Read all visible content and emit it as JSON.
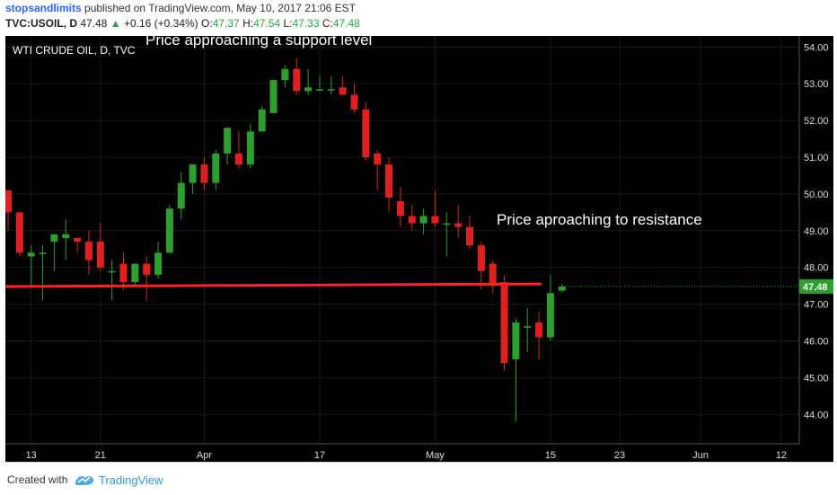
{
  "header": {
    "author": "stopsandlimits",
    "published_text": "published on TradingView.com, May 10, 2017 21:06 EST",
    "symbol": "TVC:USOIL, D",
    "last": "47.48",
    "change_arrow": "▲",
    "change": "+0.16 (+0.34%)",
    "o_label": "O:",
    "o_val": "47.37",
    "h_label": "H:",
    "h_val": "47.54",
    "l_label": "L:",
    "l_val": "47.33",
    "c_label": "C:",
    "c_val": "47.48"
  },
  "footer": {
    "created_with": "Created with",
    "brand": "TradingView"
  },
  "chart_data": {
    "type": "candlestick",
    "title": "WTI CRUDE OIL, D, TVC",
    "annotations": [
      "Price approaching a support level",
      "Price aproaching to resistance"
    ],
    "y_ticks": [
      44,
      45,
      46,
      47,
      48,
      49,
      50,
      51,
      52,
      53,
      54
    ],
    "y_tick_labels": [
      "44.00",
      "45.00",
      "46.00",
      "47.00",
      "48.00",
      "49.00",
      "50.00",
      "51.00",
      "52.00",
      "53.00",
      "54.00"
    ],
    "ylim": [
      43.2,
      54.3
    ],
    "x_ticks": [
      {
        "label": "13",
        "index": 2
      },
      {
        "label": "21",
        "index": 8
      },
      {
        "label": "Apr",
        "index": 17
      },
      {
        "label": "17",
        "index": 27
      },
      {
        "label": "May",
        "index": 37
      },
      {
        "label": "15",
        "index": 47
      },
      {
        "label": "23",
        "index": 53
      },
      {
        "label": "Jun",
        "index": 60
      },
      {
        "label": "12",
        "index": 67
      }
    ],
    "last_price": 47.48,
    "last_price_label": "47.48",
    "horizontal_line": {
      "value": 47.53,
      "color": "#ff2222"
    },
    "colors": {
      "up": "#2ca02c",
      "down": "#e02020",
      "background": "#000000",
      "grid": "#1a1a1a"
    },
    "candles": [
      {
        "o": 50.1,
        "h": 50.1,
        "l": 49.0,
        "c": 49.5
      },
      {
        "o": 49.5,
        "h": 49.5,
        "l": 48.3,
        "c": 48.4
      },
      {
        "o": 48.3,
        "h": 48.6,
        "l": 47.5,
        "c": 48.4
      },
      {
        "o": 48.4,
        "h": 48.6,
        "l": 47.1,
        "c": 48.4
      },
      {
        "o": 48.7,
        "h": 48.9,
        "l": 47.9,
        "c": 48.9
      },
      {
        "o": 48.8,
        "h": 49.3,
        "l": 48.2,
        "c": 48.9
      },
      {
        "o": 48.8,
        "h": 48.8,
        "l": 48.4,
        "c": 48.7
      },
      {
        "o": 48.7,
        "h": 49.0,
        "l": 47.8,
        "c": 48.2
      },
      {
        "o": 48.7,
        "h": 49.2,
        "l": 47.9,
        "c": 48.0
      },
      {
        "o": 47.9,
        "h": 48.2,
        "l": 47.1,
        "c": 47.9
      },
      {
        "o": 48.1,
        "h": 48.4,
        "l": 47.4,
        "c": 47.6
      },
      {
        "o": 47.6,
        "h": 48.1,
        "l": 47.5,
        "c": 48.1
      },
      {
        "o": 48.1,
        "h": 48.3,
        "l": 47.1,
        "c": 47.8
      },
      {
        "o": 47.8,
        "h": 48.7,
        "l": 47.7,
        "c": 48.4
      },
      {
        "o": 48.4,
        "h": 49.7,
        "l": 48.4,
        "c": 49.6
      },
      {
        "o": 49.6,
        "h": 50.6,
        "l": 49.3,
        "c": 50.3
      },
      {
        "o": 50.3,
        "h": 50.8,
        "l": 50.0,
        "c": 50.8
      },
      {
        "o": 50.8,
        "h": 51.0,
        "l": 50.1,
        "c": 50.3
      },
      {
        "o": 50.3,
        "h": 51.2,
        "l": 50.1,
        "c": 51.1
      },
      {
        "o": 51.1,
        "h": 51.8,
        "l": 50.8,
        "c": 51.8
      },
      {
        "o": 51.1,
        "h": 51.7,
        "l": 50.7,
        "c": 50.8
      },
      {
        "o": 50.8,
        "h": 51.9,
        "l": 50.7,
        "c": 51.7
      },
      {
        "o": 51.7,
        "h": 52.4,
        "l": 51.7,
        "c": 52.3
      },
      {
        "o": 52.2,
        "h": 53.1,
        "l": 52.2,
        "c": 53.1
      },
      {
        "o": 53.1,
        "h": 53.5,
        "l": 52.9,
        "c": 53.4
      },
      {
        "o": 53.4,
        "h": 53.7,
        "l": 52.7,
        "c": 52.8
      },
      {
        "o": 52.8,
        "h": 53.4,
        "l": 52.7,
        "c": 52.9
      },
      {
        "o": 52.85,
        "h": 53.2,
        "l": 52.8,
        "c": 52.85
      },
      {
        "o": 52.85,
        "h": 53.2,
        "l": 52.7,
        "c": 52.85
      },
      {
        "o": 52.9,
        "h": 53.2,
        "l": 52.7,
        "c": 52.7
      },
      {
        "o": 52.7,
        "h": 53.0,
        "l": 52.2,
        "c": 52.3
      },
      {
        "o": 52.3,
        "h": 52.5,
        "l": 50.9,
        "c": 51.0
      },
      {
        "o": 51.1,
        "h": 51.2,
        "l": 50.1,
        "c": 50.8
      },
      {
        "o": 50.8,
        "h": 51.0,
        "l": 49.5,
        "c": 49.9
      },
      {
        "o": 49.8,
        "h": 50.2,
        "l": 49.1,
        "c": 49.4
      },
      {
        "o": 49.4,
        "h": 49.7,
        "l": 49.0,
        "c": 49.2
      },
      {
        "o": 49.2,
        "h": 49.6,
        "l": 48.9,
        "c": 49.4
      },
      {
        "o": 49.4,
        "h": 50.1,
        "l": 49.1,
        "c": 49.2
      },
      {
        "o": 49.2,
        "h": 49.5,
        "l": 48.3,
        "c": 49.2
      },
      {
        "o": 49.2,
        "h": 49.7,
        "l": 48.8,
        "c": 49.1
      },
      {
        "o": 49.1,
        "h": 49.4,
        "l": 48.5,
        "c": 48.6
      },
      {
        "o": 48.6,
        "h": 48.7,
        "l": 47.4,
        "c": 47.9
      },
      {
        "o": 48.1,
        "h": 48.2,
        "l": 47.3,
        "c": 47.5
      },
      {
        "o": 47.6,
        "h": 47.8,
        "l": 45.2,
        "c": 45.4
      },
      {
        "o": 45.5,
        "h": 46.6,
        "l": 43.8,
        "c": 46.5
      },
      {
        "o": 46.4,
        "h": 46.9,
        "l": 45.7,
        "c": 46.4
      },
      {
        "o": 46.5,
        "h": 46.8,
        "l": 45.5,
        "c": 46.1
      },
      {
        "o": 46.1,
        "h": 47.8,
        "l": 46.0,
        "c": 47.3
      },
      {
        "o": 47.37,
        "h": 47.54,
        "l": 47.33,
        "c": 47.48
      }
    ]
  }
}
